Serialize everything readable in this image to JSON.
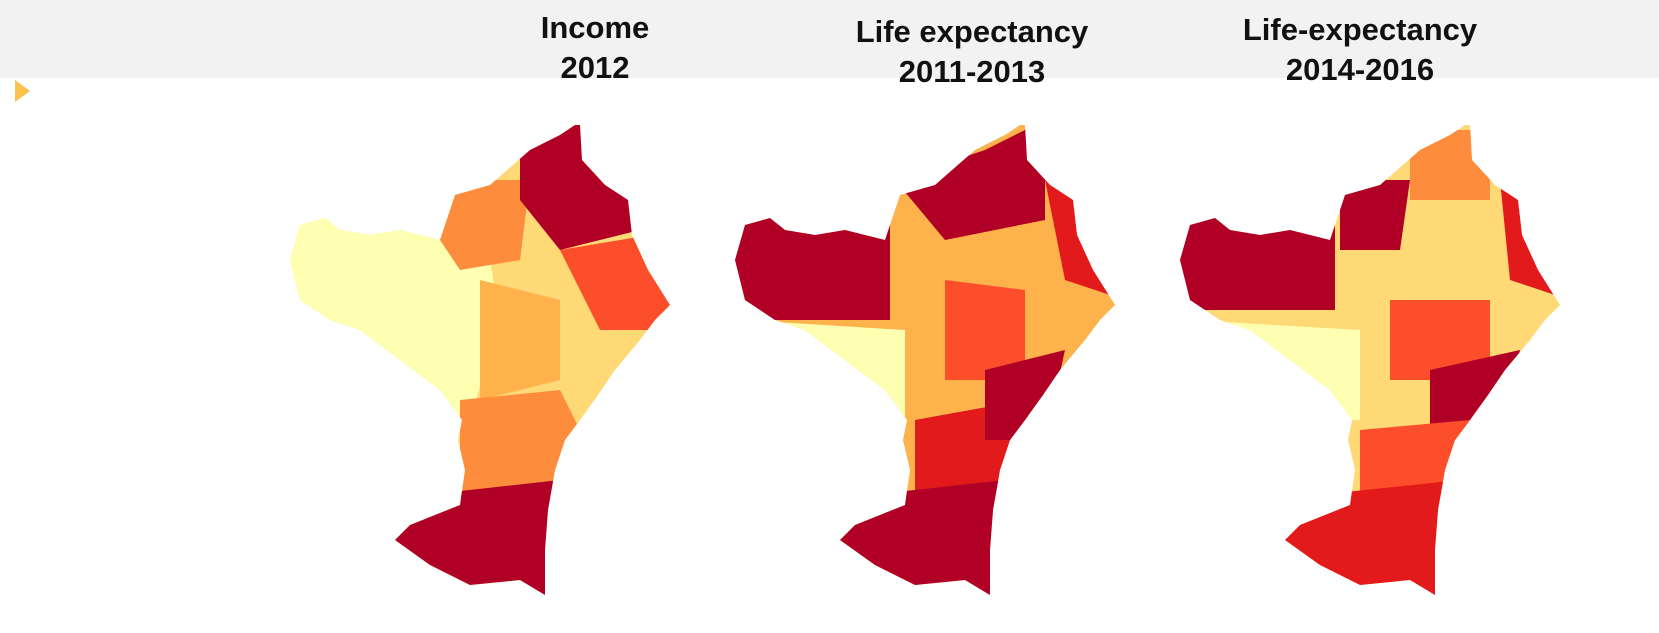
{
  "maps": [
    {
      "title": [
        "Income",
        "2012"
      ]
    },
    {
      "title": [
        "Life expectancy",
        "2011-2013"
      ]
    },
    {
      "title": [
        "Life-expectancy",
        "2014-2016"
      ]
    }
  ]
}
